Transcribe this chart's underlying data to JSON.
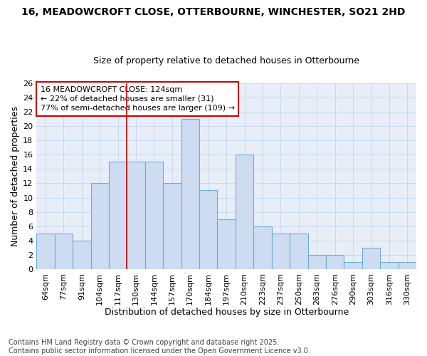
{
  "title_line1": "16, MEADOWCROFT CLOSE, OTTERBOURNE, WINCHESTER, SO21 2HD",
  "title_line2": "Size of property relative to detached houses in Otterbourne",
  "xlabel": "Distribution of detached houses by size in Otterbourne",
  "ylabel": "Number of detached properties",
  "categories": [
    "64sqm",
    "77sqm",
    "91sqm",
    "104sqm",
    "117sqm",
    "130sqm",
    "144sqm",
    "157sqm",
    "170sqm",
    "184sqm",
    "197sqm",
    "210sqm",
    "223sqm",
    "237sqm",
    "250sqm",
    "263sqm",
    "276sqm",
    "290sqm",
    "303sqm",
    "316sqm",
    "330sqm"
  ],
  "values": [
    5,
    5,
    4,
    12,
    15,
    15,
    15,
    12,
    21,
    11,
    7,
    16,
    6,
    5,
    5,
    2,
    2,
    1,
    3,
    1,
    1
  ],
  "bar_color": "#cddcf0",
  "bar_edge_color": "#6baed6",
  "annotation_text": "16 MEADOWCROFT CLOSE: 124sqm\n← 22% of detached houses are smaller (31)\n77% of semi-detached houses are larger (109) →",
  "annotation_box_color": "#ffffff",
  "annotation_box_edge_color": "#cc0000",
  "vline_x": 4.5,
  "vline_color": "#cc0000",
  "ylim": [
    0,
    26
  ],
  "yticks": [
    0,
    2,
    4,
    6,
    8,
    10,
    12,
    14,
    16,
    18,
    20,
    22,
    24,
    26
  ],
  "grid_color": "#c8d8ee",
  "background_color": "#ffffff",
  "plot_bg_color": "#e8eef8",
  "footer_text": "Contains HM Land Registry data © Crown copyright and database right 2025.\nContains public sector information licensed under the Open Government Licence v3.0.",
  "title_fontsize": 10,
  "subtitle_fontsize": 9,
  "axis_label_fontsize": 9,
  "tick_fontsize": 8,
  "annotation_fontsize": 8,
  "footer_fontsize": 7
}
